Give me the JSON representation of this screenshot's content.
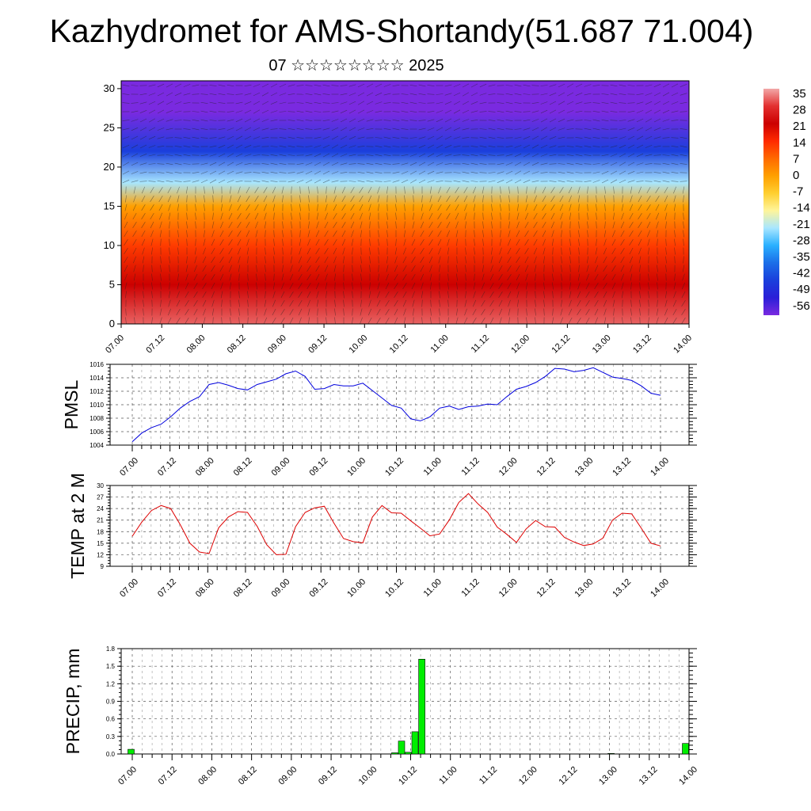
{
  "title": "Kazhydromet for AMS-Shortandy(51.687 71.004)",
  "subtitle": "07 ☆☆☆☆☆☆☆☆ 2025",
  "time_labels": [
    "07.00",
    "07.12",
    "08.00",
    "08.12",
    "09.00",
    "09.12",
    "10.00",
    "10.12",
    "11.00",
    "11.12",
    "12.00",
    "12.12",
    "13.00",
    "13.12",
    "14.00"
  ],
  "colorbar": {
    "labels": [
      "35",
      "28",
      "21",
      "14",
      "7",
      "0",
      "-7",
      "-14",
      "-21",
      "-28",
      "-35",
      "-42",
      "-49",
      "-56"
    ],
    "colors": [
      "#f2a8a8",
      "#e33030",
      "#cc0000",
      "#ff2a00",
      "#ff6a00",
      "#ffa000",
      "#ffcf30",
      "#fff59a",
      "#a8e6ff",
      "#2ab0ff",
      "#1b6ee8",
      "#1a3fdc",
      "#2a1fd8",
      "#7a2ae0"
    ]
  },
  "chart_data": [
    {
      "type": "heatmap",
      "title": "",
      "xlabel": "",
      "ylabel": "",
      "ylim": [
        0,
        31
      ],
      "yticks": [
        0,
        5,
        10,
        15,
        20,
        25,
        30
      ],
      "legend": "right",
      "note": "vertical temperature cross-section with wind barbs",
      "levels_temperature": [
        {
          "level": 0,
          "value": 31
        },
        {
          "level": 5,
          "value": 21
        },
        {
          "level": 10,
          "value": 12
        },
        {
          "level": 15,
          "value": 0
        },
        {
          "level": 18,
          "value": -21
        },
        {
          "level": 22,
          "value": -42
        },
        {
          "level": 27,
          "value": -56
        },
        {
          "level": 31,
          "value": -56
        }
      ]
    },
    {
      "type": "line",
      "ylabel": "PMSL",
      "ylim": [
        1004,
        1016
      ],
      "yticks": [
        1004,
        1006,
        1008,
        1010,
        1012,
        1014,
        1016
      ],
      "grid": true,
      "color": "#0000dd",
      "values": [
        1004.5,
        1005.8,
        1006.6,
        1007.1,
        1008.2,
        1009.5,
        1010.5,
        1011.2,
        1013.0,
        1013.3,
        1012.9,
        1012.4,
        1012.2,
        1013.0,
        1013.4,
        1013.8,
        1014.6,
        1015.0,
        1014.2,
        1012.3,
        1012.4,
        1013.0,
        1012.8,
        1012.8,
        1013.2,
        1012.1,
        1011.0,
        1009.9,
        1009.5,
        1007.9,
        1007.6,
        1008.2,
        1009.5,
        1009.8,
        1009.3,
        1009.7,
        1009.8,
        1010.1,
        1010.0,
        1011.2,
        1012.3,
        1012.7,
        1013.3,
        1014.2,
        1015.4,
        1015.3,
        1014.9,
        1015.1,
        1015.5,
        1014.8,
        1014.1,
        1013.9,
        1013.6,
        1012.8,
        1011.7,
        1011.4
      ]
    },
    {
      "type": "line",
      "ylabel": "TEMP at 2 M",
      "ylim": [
        9,
        30
      ],
      "yticks": [
        9,
        12,
        15,
        18,
        21,
        24,
        27,
        30
      ],
      "grid": true,
      "color": "#dd0000",
      "values": [
        16.8,
        20.5,
        23.5,
        24.8,
        24.0,
        19.8,
        15.0,
        12.7,
        12.3,
        19.0,
        21.8,
        23.2,
        23.0,
        19.4,
        14.6,
        12.0,
        12.1,
        19.3,
        23.0,
        24.2,
        24.6,
        20.2,
        16.2,
        15.4,
        15.1,
        21.8,
        24.8,
        22.9,
        22.8,
        20.8,
        18.9,
        16.9,
        17.4,
        21.0,
        25.6,
        27.9,
        25.2,
        23.0,
        19.2,
        17.3,
        15.2,
        18.7,
        20.9,
        19.3,
        19.2,
        16.5,
        15.3,
        14.4,
        14.8,
        16.3,
        21.0,
        22.8,
        22.6,
        18.9,
        15.0,
        14.3
      ]
    },
    {
      "type": "bar",
      "ylabel": "PRECIP, mm",
      "ylim": [
        0,
        1.8
      ],
      "yticks": [
        "0.0",
        "0.3",
        "0.6",
        "0.9",
        "1.2",
        "1.5",
        "1.8"
      ],
      "grid": true,
      "color": "#00ee00",
      "bars": [
        {
          "slot": 1,
          "value": 0.08
        },
        {
          "slot": 40,
          "value": 0.02
        },
        {
          "slot": 41,
          "value": 0.22
        },
        {
          "slot": 42,
          "value": 0.03
        },
        {
          "slot": 43,
          "value": 0.38
        },
        {
          "slot": 44,
          "value": 1.62
        },
        {
          "slot": 72,
          "value": 0.01
        },
        {
          "slot": 83,
          "value": 0.18
        }
      ],
      "slots_total": 84
    }
  ]
}
